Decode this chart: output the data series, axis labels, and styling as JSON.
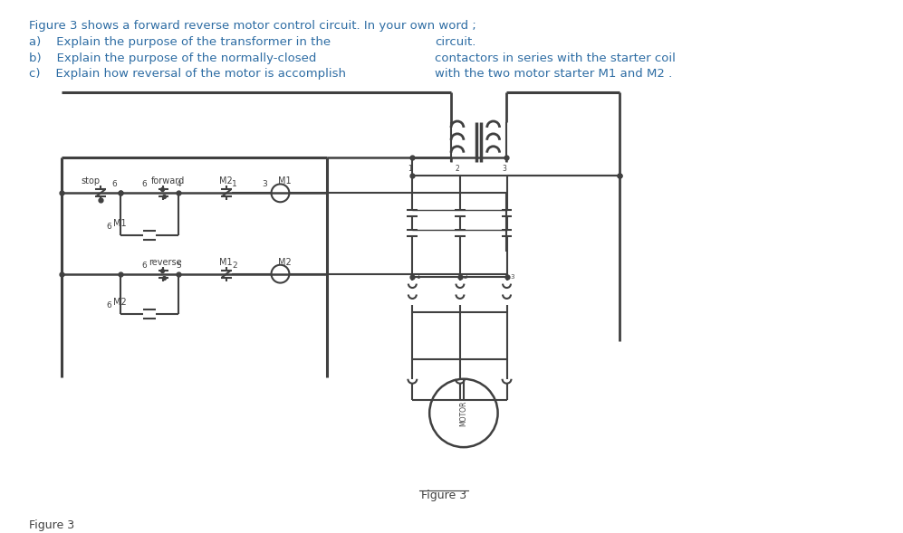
{
  "bg_color": "#ffffff",
  "text_color": "#2e6da4",
  "circuit_color": "#404040",
  "title_text": "Figure 3 shows a forward reverse motor control circuit. In your own word ;",
  "line_a": "a)    Explain the purpose of the transformer in the",
  "line_a2": "circuit.",
  "line_b": "b)    Explain the purpose of the normally-closed",
  "line_b2": "contactors in series with the starter coil",
  "line_c": "c)    Explain how reversal of the motor is accomplish",
  "line_c2": "with the two motor starter M1 and M2 .",
  "caption": "Figure 3",
  "caption2": "Figure 3",
  "fig_width": 9.97,
  "fig_height": 5.89,
  "dpi": 100
}
